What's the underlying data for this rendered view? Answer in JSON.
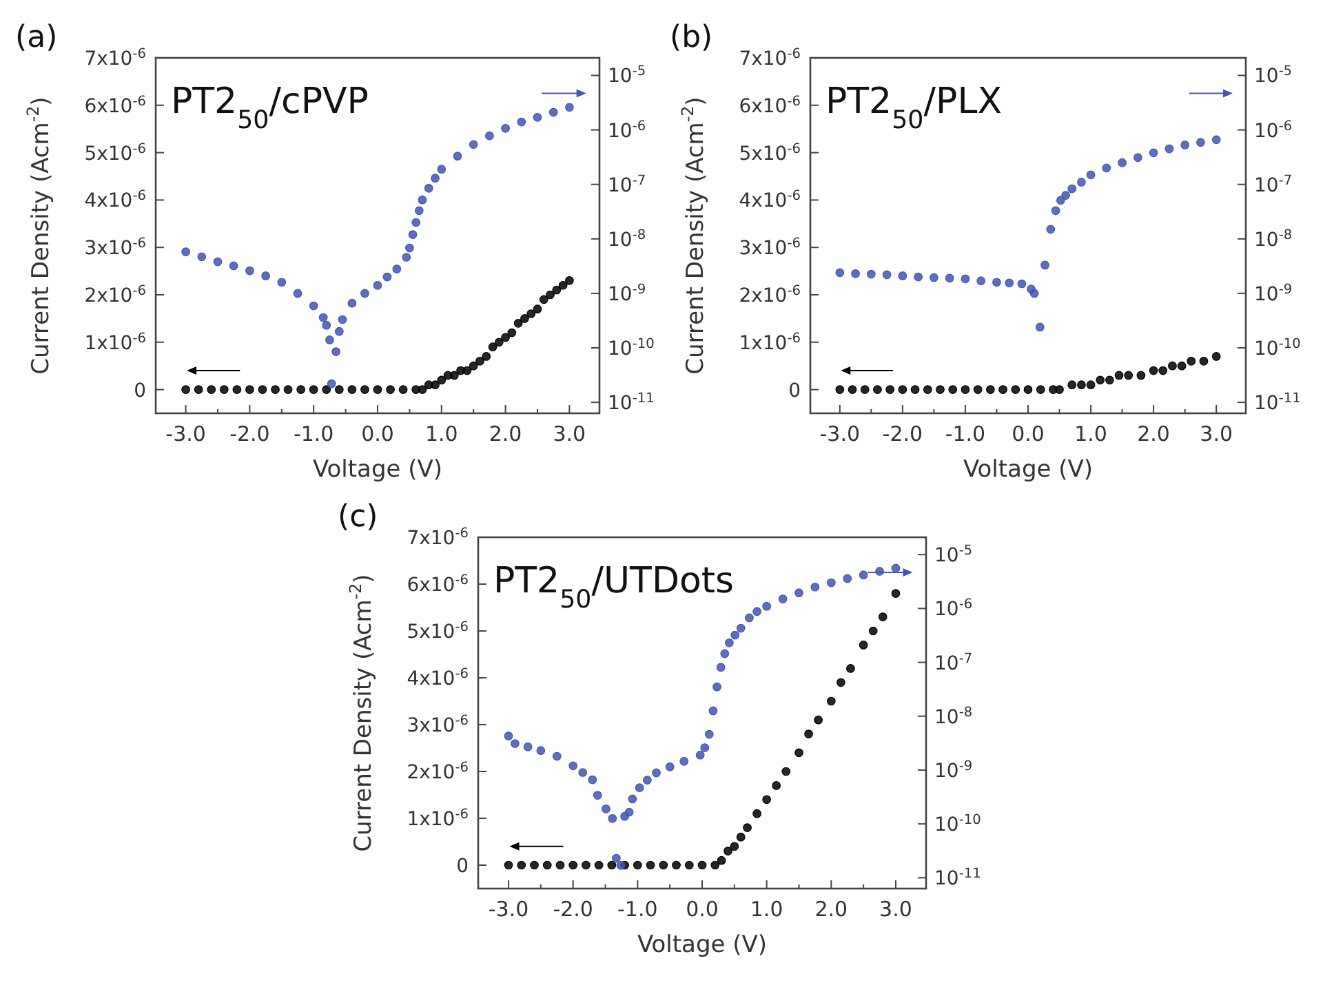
{
  "chart_data": [
    {
      "type": "scatter",
      "title": "PT2$_{50}$/cPVP",
      "annotations": [
        "(a)"
      ],
      "xlabel": "Voltage (V)",
      "ylabel": "Current Density (Acm$^{-2}$)",
      "marker": "circle",
      "xlim": [
        -3.47,
        3.47
      ],
      "xticks": [
        {
          "value": -3,
          "label": "-3.0"
        },
        {
          "value": -2.5,
          "label": null
        },
        {
          "value": -2,
          "label": "-2.0"
        },
        {
          "value": -1.5,
          "label": null
        },
        {
          "value": -1,
          "label": "-1.0"
        },
        {
          "value": -0.5,
          "label": null
        },
        {
          "value": 0,
          "label": "0.0"
        },
        {
          "value": 0.5,
          "label": null
        },
        {
          "value": 1,
          "label": "1.0"
        },
        {
          "value": 1.5,
          "label": null
        },
        {
          "value": 2,
          "label": "2.0"
        },
        {
          "value": 2.5,
          "label": null
        },
        {
          "value": 3,
          "label": "3.0"
        }
      ],
      "ylim": [
        -5e-07,
        7e-06
      ],
      "yticks": [
        {
          "value": 0,
          "label": "0"
        },
        {
          "value": 1e-06,
          "label": "1x10$^{-6}$"
        },
        {
          "value": 2e-06,
          "label": "2x10$^{-6}$"
        },
        {
          "value": 3e-06,
          "label": "3x10$^{-6}$"
        },
        {
          "value": 4e-06,
          "label": "4x10$^{-6}$"
        },
        {
          "value": 5e-06,
          "label": "5x10$^{-6}$"
        },
        {
          "value": 6e-06,
          "label": "6x10$^{-6}$"
        },
        {
          "value": 7e-06,
          "label": "7x10$^{-6}$"
        }
      ],
      "log": "y2",
      "y2lim": [
        6.3e-12,
        2.1e-05
      ],
      "y2ticks": [
        {
          "value": 1e-05,
          "label": "10$^{-5}$"
        },
        {
          "value": 1e-06,
          "label": "10$^{-6}$"
        },
        {
          "value": 1e-07,
          "label": "10$^{-7}$"
        },
        {
          "value": 1e-08,
          "label": "10$^{-8}$"
        },
        {
          "value": 1e-09,
          "label": "10$^{-9}$"
        },
        {
          "value": 1e-10,
          "label": "10$^{-10}$"
        },
        {
          "value": 1e-11,
          "label": "10$^{-11}$"
        }
      ],
      "series": [
        {
          "color": "#000000",
          "axis": "y",
          "x": [
            -3,
            -2.8,
            -2.6,
            -2.4,
            -2.2,
            -2,
            -1.8,
            -1.6,
            -1.4,
            -1.2,
            -1,
            -0.8,
            -0.6,
            -0.4,
            -0.2,
            0,
            0.2,
            0.4,
            0.6,
            0.7,
            0.8,
            0.9,
            1,
            1.1,
            1.2,
            1.3,
            1.4,
            1.5,
            1.6,
            1.7,
            1.8,
            1.9,
            2,
            2.1,
            2.2,
            2.3,
            2.4,
            2.5,
            2.6,
            2.7,
            2.8,
            2.9,
            3
          ],
          "values": [
            0,
            0,
            0,
            0,
            0,
            0,
            0,
            0,
            0,
            0,
            0,
            0,
            0,
            0,
            0,
            0,
            0,
            0,
            0,
            0,
            1e-07,
            1e-07,
            2e-07,
            3e-07,
            3e-07,
            4e-07,
            4e-07,
            5e-07,
            6e-07,
            7e-07,
            9e-07,
            1e-06,
            1.1e-06,
            1.2e-06,
            1.4e-06,
            1.5e-06,
            1.6e-06,
            1.7e-06,
            1.9e-06,
            2e-06,
            2.1e-06,
            2.2e-06,
            2.3e-06
          ]
        },
        {
          "color": "#4355b0",
          "axis": "y2",
          "x": [
            -3,
            -2.75,
            -2.5,
            -2.25,
            -2,
            -1.75,
            -1.5,
            -1.25,
            -1,
            -0.85,
            -0.8,
            -0.75,
            -0.72,
            -0.65,
            -0.6,
            -0.55,
            -0.4,
            -0.2,
            0,
            0.15,
            0.3,
            0.45,
            0.5,
            0.55,
            0.6,
            0.65,
            0.7,
            0.8,
            0.9,
            1,
            1.25,
            1.5,
            1.75,
            2,
            2.25,
            2.5,
            2.75,
            3
          ],
          "values": [
            5.8e-09,
            4.7e-09,
            3.8e-09,
            3.2e-09,
            2.6e-09,
            2.1e-09,
            1.6e-09,
            1e-09,
            5.9e-10,
            3.6e-10,
            2.6e-10,
            1.4e-10,
            2.2e-11,
            8.5e-11,
            2e-10,
            3.3e-10,
            6.6e-10,
            1e-09,
            1.4e-09,
            2e-09,
            2.8e-09,
            4.6e-09,
            6.8e-09,
            1.2e-08,
            2e-08,
            3.3e-08,
            5.2e-08,
            8.5e-08,
            1.3e-07,
            1.9e-07,
            3.3e-07,
            5.4e-07,
            7.8e-07,
            1.07e-06,
            1.4e-06,
            1.7e-06,
            2.1e-06,
            2.6e-06
          ]
        }
      ]
    },
    {
      "type": "scatter",
      "title": "PT2$_{50}$/PLX",
      "annotations": [
        "(b)"
      ],
      "xlabel": "Voltage (V)",
      "ylabel": "Current Density (Acm$^{-2}$)",
      "marker": "circle",
      "xlim": [
        -3.47,
        3.47
      ],
      "xticks": [
        {
          "value": -3,
          "label": "-3.0"
        },
        {
          "value": -2.5,
          "label": null
        },
        {
          "value": -2,
          "label": "-2.0"
        },
        {
          "value": -1.5,
          "label": null
        },
        {
          "value": -1,
          "label": "-1.0"
        },
        {
          "value": -0.5,
          "label": null
        },
        {
          "value": 0,
          "label": "0.0"
        },
        {
          "value": 0.5,
          "label": null
        },
        {
          "value": 1,
          "label": "1.0"
        },
        {
          "value": 1.5,
          "label": null
        },
        {
          "value": 2,
          "label": "2.0"
        },
        {
          "value": 2.5,
          "label": null
        },
        {
          "value": 3,
          "label": "3.0"
        }
      ],
      "ylim": [
        -5e-07,
        7e-06
      ],
      "yticks": [
        {
          "value": 0,
          "label": "0"
        },
        {
          "value": 1e-06,
          "label": "1x10$^{-6}$"
        },
        {
          "value": 2e-06,
          "label": "2x10$^{-6}$"
        },
        {
          "value": 3e-06,
          "label": "3x10$^{-6}$"
        },
        {
          "value": 4e-06,
          "label": "4x10$^{-6}$"
        },
        {
          "value": 5e-06,
          "label": "5x10$^{-6}$"
        },
        {
          "value": 6e-06,
          "label": "6x10$^{-6}$"
        },
        {
          "value": 7e-06,
          "label": "7x10$^{-6}$"
        }
      ],
      "log": "y2",
      "y2lim": [
        6.3e-12,
        2.1e-05
      ],
      "y2ticks": [
        {
          "value": 1e-05,
          "label": "10$^{-5}$"
        },
        {
          "value": 1e-06,
          "label": "10$^{-6}$"
        },
        {
          "value": 1e-07,
          "label": "10$^{-7}$"
        },
        {
          "value": 1e-08,
          "label": "10$^{-8}$"
        },
        {
          "value": 1e-09,
          "label": "10$^{-9}$"
        },
        {
          "value": 1e-10,
          "label": "10$^{-10}$"
        },
        {
          "value": 1e-11,
          "label": "10$^{-11}$"
        }
      ],
      "series": [
        {
          "color": "#000000",
          "axis": "y",
          "x": [
            -3,
            -2.8,
            -2.6,
            -2.4,
            -2.2,
            -2,
            -1.8,
            -1.6,
            -1.4,
            -1.2,
            -1,
            -0.8,
            -0.6,
            -0.4,
            -0.2,
            0,
            0.2,
            0.4,
            0.5,
            0.7,
            0.85,
            1,
            1.15,
            1.3,
            1.45,
            1.6,
            1.8,
            2,
            2.15,
            2.3,
            2.45,
            2.6,
            2.8,
            3
          ],
          "values": [
            0,
            0,
            0,
            0,
            0,
            0,
            0,
            0,
            0,
            0,
            0,
            0,
            0,
            0,
            0,
            0,
            0,
            0,
            0,
            1e-07,
            1e-07,
            1e-07,
            2e-07,
            2e-07,
            3e-07,
            3e-07,
            3e-07,
            4e-07,
            4e-07,
            5e-07,
            5e-07,
            6e-07,
            6e-07,
            7e-07
          ]
        },
        {
          "color": "#4355b0",
          "axis": "y2",
          "x": [
            -3,
            -2.75,
            -2.5,
            -2.25,
            -2,
            -1.75,
            -1.5,
            -1.25,
            -1,
            -0.75,
            -0.5,
            -0.3,
            -0.1,
            0.05,
            0.1,
            0.19,
            0.27,
            0.36,
            0.44,
            0.52,
            0.6,
            0.7,
            0.85,
            1,
            1.25,
            1.5,
            1.75,
            2,
            2.25,
            2.5,
            2.75,
            3
          ],
          "values": [
            2.4e-09,
            2.3e-09,
            2.25e-09,
            2.2e-09,
            2.1e-09,
            2e-09,
            1.95e-09,
            1.9e-09,
            1.85e-09,
            1.7e-09,
            1.6e-09,
            1.55e-09,
            1.5e-09,
            1.2e-09,
            1e-09,
            2.4e-10,
            3.3e-09,
            1.5e-08,
            3.3e-08,
            5.1e-08,
            6.3e-08,
            8.3e-08,
            1.1e-07,
            1.5e-07,
            2e-07,
            2.5e-07,
            3.1e-07,
            3.8e-07,
            4.5e-07,
            5.3e-07,
            5.9e-07,
            6.6e-07
          ]
        }
      ]
    },
    {
      "type": "scatter",
      "title": "PT2$_{50}$/UTDots",
      "annotations": [
        "(c)"
      ],
      "xlabel": "Voltage (V)",
      "ylabel": "Current Density (Acm$^{-2}$)",
      "marker": "circle",
      "xlim": [
        -3.47,
        3.47
      ],
      "xticks": [
        {
          "value": -3,
          "label": "-3.0"
        },
        {
          "value": -2.5,
          "label": null
        },
        {
          "value": -2,
          "label": "-2.0"
        },
        {
          "value": -1.5,
          "label": null
        },
        {
          "value": -1,
          "label": "-1.0"
        },
        {
          "value": -0.5,
          "label": null
        },
        {
          "value": 0,
          "label": "0.0"
        },
        {
          "value": 0.5,
          "label": null
        },
        {
          "value": 1,
          "label": "1.0"
        },
        {
          "value": 1.5,
          "label": null
        },
        {
          "value": 2,
          "label": "2.0"
        },
        {
          "value": 2.5,
          "label": null
        },
        {
          "value": 3,
          "label": "3.0"
        }
      ],
      "ylim": [
        -5e-07,
        7e-06
      ],
      "yticks": [
        {
          "value": 0,
          "label": "0"
        },
        {
          "value": 1e-06,
          "label": "1x10$^{-6}$"
        },
        {
          "value": 2e-06,
          "label": "2x10$^{-6}$"
        },
        {
          "value": 3e-06,
          "label": "3x10$^{-6}$"
        },
        {
          "value": 4e-06,
          "label": "4x10$^{-6}$"
        },
        {
          "value": 5e-06,
          "label": "5x10$^{-6}$"
        },
        {
          "value": 6e-06,
          "label": "6x10$^{-6}$"
        },
        {
          "value": 7e-06,
          "label": "7x10$^{-6}$"
        }
      ],
      "log": "y2",
      "y2lim": [
        6.3e-12,
        2.1e-05
      ],
      "y2ticks": [
        {
          "value": 1e-05,
          "label": "10$^{-5}$"
        },
        {
          "value": 1e-06,
          "label": "10$^{-6}$"
        },
        {
          "value": 1e-07,
          "label": "10$^{-7}$"
        },
        {
          "value": 1e-08,
          "label": "10$^{-8}$"
        },
        {
          "value": 1e-09,
          "label": "10$^{-9}$"
        },
        {
          "value": 1e-10,
          "label": "10$^{-10}$"
        },
        {
          "value": 1e-11,
          "label": "10$^{-11}$"
        }
      ],
      "series": [
        {
          "color": "#000000",
          "axis": "y",
          "x": [
            -3,
            -2.8,
            -2.6,
            -2.4,
            -2.2,
            -2,
            -1.8,
            -1.6,
            -1.4,
            -1.2,
            -1,
            -0.8,
            -0.6,
            -0.4,
            -0.2,
            0,
            0.2,
            0.3,
            0.4,
            0.5,
            0.6,
            0.7,
            0.85,
            1,
            1.15,
            1.3,
            1.5,
            1.65,
            1.8,
            2,
            2.15,
            2.3,
            2.5,
            2.65,
            2.8,
            3
          ],
          "values": [
            0,
            0,
            0,
            0,
            0,
            0,
            0,
            0,
            0,
            0,
            0,
            0,
            0,
            0,
            0,
            0,
            0,
            1e-07,
            3e-07,
            4e-07,
            6e-07,
            8e-07,
            1.1e-06,
            1.4e-06,
            1.7e-06,
            2e-06,
            2.4e-06,
            2.8e-06,
            3.1e-06,
            3.5e-06,
            3.9e-06,
            4.2e-06,
            4.7e-06,
            5e-06,
            5.3e-06,
            5.8e-06
          ]
        },
        {
          "color": "#4355b0",
          "axis": "y2",
          "x": [
            -3,
            -2.9,
            -2.7,
            -2.5,
            -2.25,
            -2,
            -1.85,
            -1.7,
            -1.62,
            -1.49,
            -1.39,
            -1.33,
            -1.26,
            -1.2,
            -1.13,
            -1.08,
            -0.97,
            -0.85,
            -0.71,
            -0.5,
            -0.28,
            -0.03,
            0.04,
            0.11,
            0.17,
            0.23,
            0.29,
            0.35,
            0.42,
            0.51,
            0.6,
            0.73,
            0.85,
            1,
            1.25,
            1.5,
            1.75,
            2,
            2.25,
            2.5,
            2.75,
            3
          ],
          "values": [
            4.3e-09,
            3.1e-09,
            2.7e-09,
            2.3e-09,
            1.8e-09,
            1.2e-09,
            9e-10,
            6.6e-10,
            3.4e-10,
            1.9e-10,
            1.26e-10,
            2.3e-11,
            1.7e-11,
            1.38e-10,
            1.65e-10,
            2.9e-10,
            4.7e-10,
            6.5e-10,
            8.9e-10,
            1.15e-09,
            1.45e-09,
            1.9e-09,
            2.6e-09,
            4.6e-09,
            1.26e-08,
            3.5e-08,
            8.1e-08,
            1.45e-07,
            2.3e-07,
            3.2e-07,
            4.3e-07,
            6.7e-07,
            8.8e-07,
            1.1e-06,
            1.5e-06,
            1.95e-06,
            2.5e-06,
            3e-06,
            3.6e-06,
            4.2e-06,
            4.9e-06,
            5.6e-06
          ]
        }
      ]
    }
  ]
}
